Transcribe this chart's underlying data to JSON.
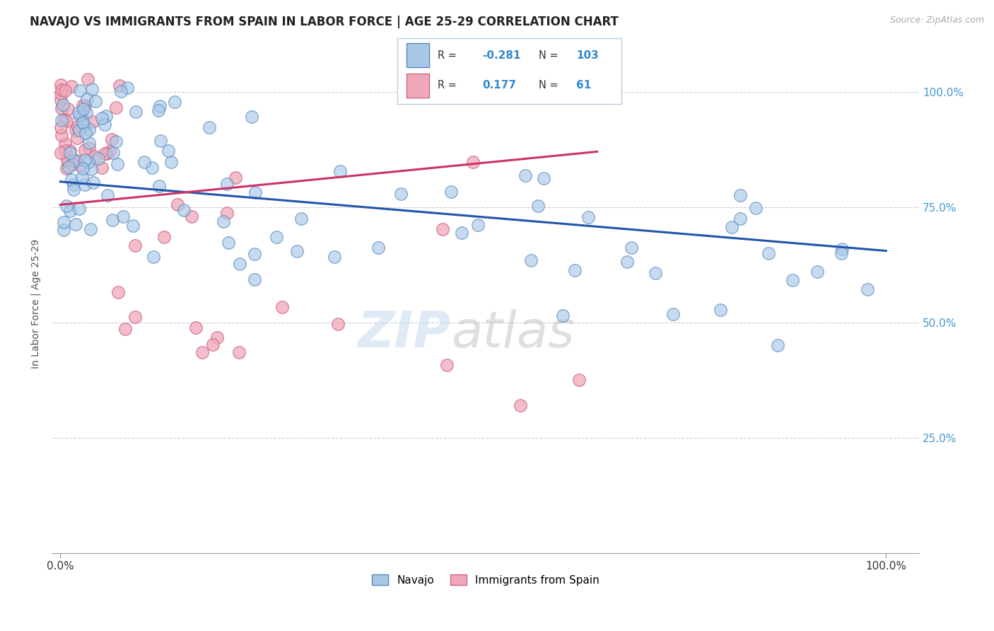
{
  "title": "NAVAJO VS IMMIGRANTS FROM SPAIN IN LABOR FORCE | AGE 25-29 CORRELATION CHART",
  "source_text": "Source: ZipAtlas.com",
  "ylabel": "In Labor Force | Age 25-29",
  "legend_labels": [
    "Navajo",
    "Immigrants from Spain"
  ],
  "navajo_R": "-0.281",
  "navajo_N": "103",
  "spain_R": "0.177",
  "spain_N": "61",
  "blue_fill": "#a8c8e8",
  "blue_edge": "#5588bb",
  "pink_fill": "#f0a8b8",
  "pink_edge": "#cc6688",
  "blue_line_color": "#2255aa",
  "pink_line_color": "#cc3366",
  "legend_box_color": "#ccddee",
  "legend_text_blue": "#3388cc",
  "background_color": "#ffffff",
  "grid_color": "#cccccc",
  "navajo_line_y0": 0.805,
  "navajo_line_y1": 0.655,
  "spain_line_x0": 0.0,
  "spain_line_x1": 0.65,
  "spain_line_y0": 0.755,
  "spain_line_y1": 0.87,
  "ylim_min": 0.0,
  "ylim_max": 1.08,
  "xlim_min": -0.01,
  "xlim_max": 1.04
}
